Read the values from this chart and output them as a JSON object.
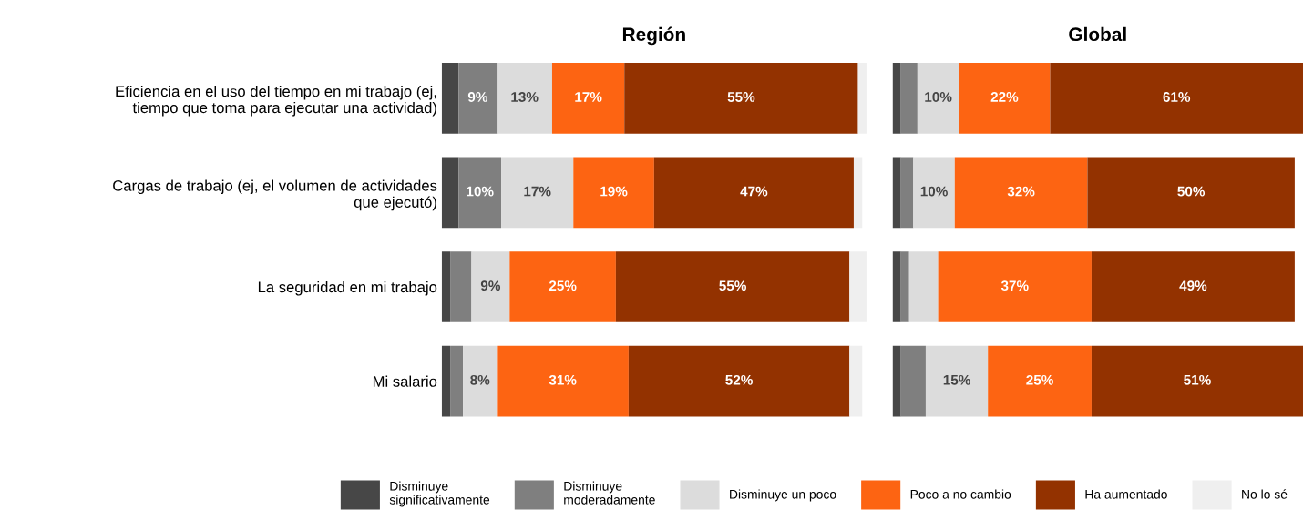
{
  "chart_data": [
    {
      "type": "bar",
      "title": "Región",
      "orientation": "horizontal",
      "stacked": true,
      "legend": "bottom",
      "tick_labels": "y",
      "categories": [
        "Eficiencia en el uso del tiempo en mi trabajo (ej,\ntiempo que toma para ejecutar una actividad)",
        "Cargas de trabajo (ej, el volumen de actividades\nque ejecutó)",
        "La seguridad en mi trabajo",
        "Mi salario"
      ],
      "series": [
        {
          "name": "Disminuye\nsignificativamente",
          "color": "#474747",
          "values": [
            4,
            4,
            2,
            2
          ],
          "value_labels": [
            null,
            null,
            null,
            null
          ]
        },
        {
          "name": "Disminuye\nmoderadamente",
          "color": "#7f7f7f",
          "values": [
            9,
            10,
            5,
            3
          ],
          "value_labels": [
            "9%",
            "10%",
            null,
            null
          ]
        },
        {
          "name": "Disminuye un poco",
          "color": "#dcdcdc",
          "values": [
            13,
            17,
            9,
            8
          ],
          "value_labels": [
            "13%",
            "17%",
            "9%",
            "8%"
          ]
        },
        {
          "name": "Poco a no cambio",
          "color": "#fd6412",
          "values": [
            17,
            19,
            25,
            31
          ],
          "value_labels": [
            "17%",
            "19%",
            "25%",
            "31%"
          ]
        },
        {
          "name": "Ha aumentado",
          "color": "#933200",
          "values": [
            55,
            47,
            55,
            52
          ],
          "value_labels": [
            "55%",
            "47%",
            "55%",
            "52%"
          ]
        },
        {
          "name": "No lo sé",
          "color": "#efefef",
          "values": [
            2,
            2,
            4,
            3
          ],
          "value_labels": [
            null,
            null,
            null,
            null
          ]
        }
      ]
    },
    {
      "type": "bar",
      "title": "Global",
      "orientation": "horizontal",
      "stacked": true,
      "tick_labels": false,
      "categories": [
        null,
        null,
        null,
        null
      ],
      "series": [
        {
          "color": "#474747",
          "values": [
            2,
            2,
            2,
            2
          ],
          "value_labels": [
            null,
            null,
            null,
            null
          ]
        },
        {
          "color": "#7f7f7f",
          "values": [
            4,
            3,
            2,
            6
          ],
          "value_labels": [
            null,
            null,
            null,
            null
          ]
        },
        {
          "color": "#dcdcdc",
          "values": [
            10,
            10,
            7,
            15
          ],
          "value_labels": [
            "10%",
            "10%",
            null,
            "15%"
          ]
        },
        {
          "color": "#fd6412",
          "values": [
            22,
            32,
            37,
            25
          ],
          "value_labels": [
            "22%",
            "32%",
            "37%",
            "25%"
          ]
        },
        {
          "color": "#933200",
          "values": [
            61,
            50,
            49,
            51
          ],
          "value_labels": [
            "61%",
            "50%",
            "49%",
            "51%"
          ]
        }
      ]
    }
  ]
}
